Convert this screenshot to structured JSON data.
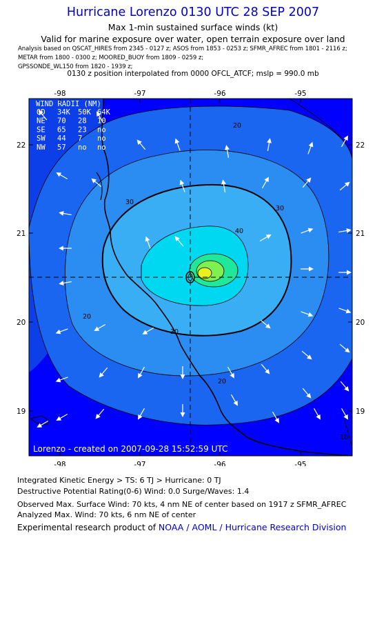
{
  "header": {
    "title": "Hurricane Lorenzo 0130 UTC 28 SEP 2007",
    "subtitle1": "Max 1-min sustained surface winds (kt)",
    "subtitle2": "Valid for marine exposure over water, open terrain exposure over land",
    "analysis_line1": "Analysis based on  QSCAT_HIRES from 2345 - 0127 z;  ASOS from 1853 - 0253 z;  SFMR_AFREC from 1801 - 2116 z;",
    "analysis_line2": "METAR from 1800 - 0300 z;  MOORED_BUOY from 1809 - 0259 z;",
    "analysis_line3": "GPSSONDE_WL150 from 1820 - 1939 z;",
    "interp": "0130 z position interpolated from 0000 OFCL_ATCF; mslp = 990.0 mb"
  },
  "map": {
    "lon_ticks": [
      "-98",
      "-97",
      "-96",
      "-95"
    ],
    "lat_ticks": [
      "22",
      "21",
      "20",
      "19"
    ],
    "contour_labels": [
      "20",
      "30",
      "30",
      "40",
      "20",
      "30",
      "20",
      "10"
    ],
    "credit": "Lorenzo - created on 2007-09-28 15:52:59 UTC",
    "wind_radii": {
      "title": "WIND RADII (NM)",
      "rows": [
        [
          "QD",
          "34K",
          "50K",
          "64K"
        ],
        [
          "NE",
          "70",
          "28",
          "10"
        ],
        [
          "SE",
          "65",
          "23",
          "no"
        ],
        [
          "SW",
          "44",
          "7",
          "no"
        ],
        [
          "NW",
          "57",
          "no",
          "no"
        ]
      ]
    },
    "colors": {
      "ocean_outer": "#0000ff",
      "land_low": "#0d3fe8",
      "ring_20": "#1a66f0",
      "ring_30": "#2b8cf2",
      "ring_40": "#3aaef4",
      "core": "#00d8f2",
      "core_green": "#1fe89a",
      "core_yellow": "#e8f020"
    }
  },
  "footer": {
    "ike": "Integrated Kinetic Energy > TS: 6 TJ   > Hurricane: 0 TJ",
    "dpr": "Destructive Potential Rating(0-6)   Wind: 0.0 Surge/Waves: 1.4",
    "obs": "Observed Max. Surface Wind: 70 kts, 4 nm NE of center based on 1917 z SFMR_AFREC",
    "analyzed": "Analyzed Max. Wind: 70 kts, 6 nm NE of center",
    "product_prefix": "Experimental research product of ",
    "product_link": "NOAA / AOML / Hurricane Research Division"
  }
}
